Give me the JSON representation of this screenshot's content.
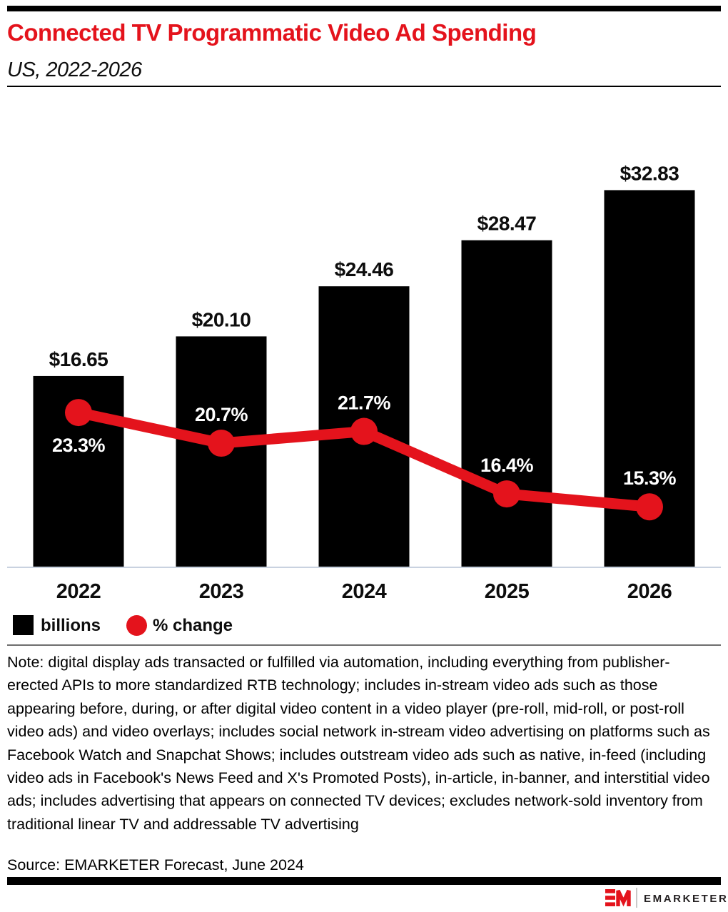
{
  "header": {
    "title": "Connected TV Programmatic Video Ad Spending",
    "subtitle": "US, 2022-2026"
  },
  "chart_data": {
    "type": "bar",
    "subtype": "bar-line-combo",
    "categories": [
      "2022",
      "2023",
      "2024",
      "2025",
      "2026"
    ],
    "series": [
      {
        "name": "billions",
        "type": "bar",
        "values": [
          16.65,
          20.1,
          24.46,
          28.47,
          32.83
        ],
        "labels": [
          "$16.65",
          "$20.10",
          "$24.46",
          "$28.47",
          "$32.83"
        ],
        "color": "#000000"
      },
      {
        "name": "% change",
        "type": "line",
        "values": [
          23.3,
          20.7,
          21.7,
          16.4,
          15.3
        ],
        "labels": [
          "23.3%",
          "20.7%",
          "21.7%",
          "16.4%",
          "15.3%"
        ],
        "color": "#e4131c"
      }
    ],
    "title": "Connected TV Programmatic Video Ad Spending",
    "subtitle": "US, 2022-2026",
    "xlabel": "",
    "ylabel": "",
    "grid": false,
    "legend_position": "bottom-left",
    "legend": [
      {
        "label": "billions",
        "swatch": "square",
        "color": "#000000"
      },
      {
        "label": "% change",
        "swatch": "circle",
        "color": "#e4131c"
      }
    ]
  },
  "colors": {
    "brand_red": "#e4131c",
    "bar_black": "#000000",
    "axis_line": "#c9d2e0",
    "divider_gray": "#6e6e6e"
  },
  "note": "Note: digital display ads transacted or fulfilled via automation, including everything from publisher-erected APIs to more standardized RTB technology; includes in-stream video ads such as those appearing before, during, or after digital video content in a video player (pre-roll, mid-roll, or post-roll video ads) and video overlays; includes social network in-stream video advertising on platforms such as Facebook Watch and Snapchat Shows; includes outstream video ads such as native, in-feed (including video ads in Facebook's News Feed and X's Promoted Posts), in-article, in-banner, and interstitial video ads; includes advertising that appears on connected TV devices; excludes network-sold inventory from traditional linear TV and addressable TV advertising",
  "source": "Source: EMARKETER Forecast, June 2024",
  "footer": {
    "brand": "EMARKETER"
  }
}
